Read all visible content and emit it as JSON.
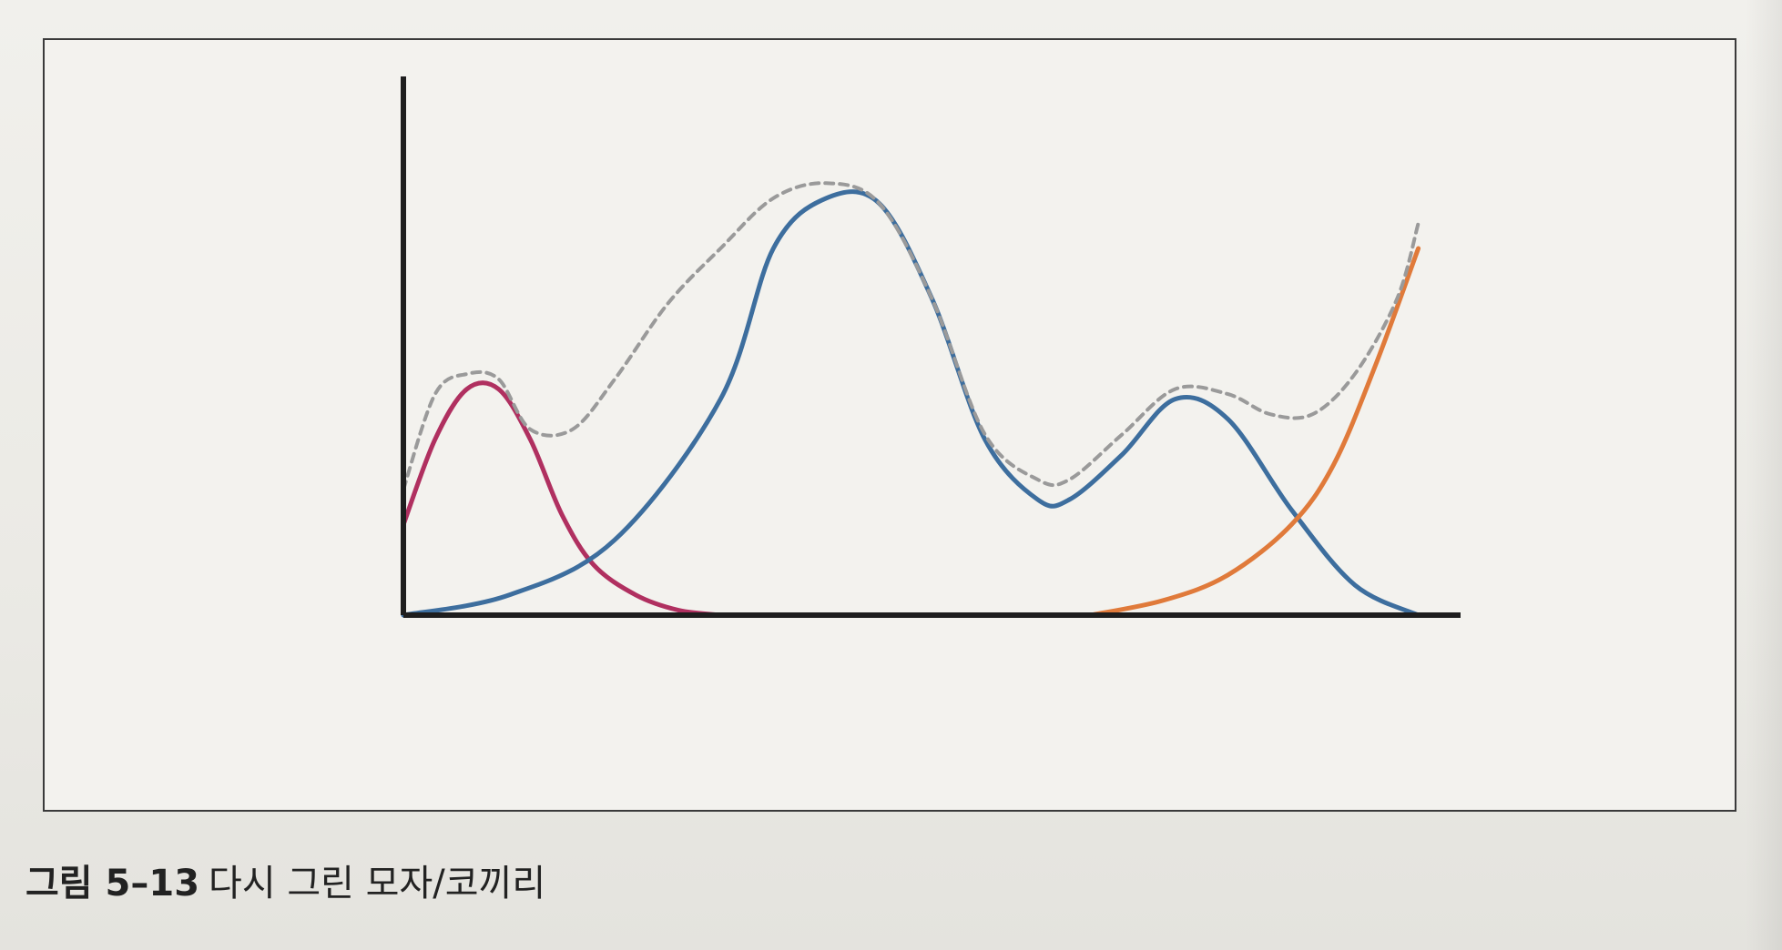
{
  "caption": {
    "label": "그림 5–13",
    "text": "다시 그린 모자/코끼리"
  },
  "chart_data": {
    "type": "line",
    "title": "",
    "xlabel": "",
    "ylabel": "",
    "xlim": [
      0,
      100
    ],
    "ylim": [
      0,
      100
    ],
    "grid": false,
    "legend": "none",
    "series": [
      {
        "style": "solid",
        "color": "#b03060",
        "x": [
          0,
          3,
          6,
          9,
          12,
          15,
          18,
          22,
          26,
          30
        ],
        "y": [
          18,
          35,
          45,
          45,
          35,
          20,
          10,
          4,
          1,
          0
        ]
      },
      {
        "style": "solid",
        "color": "#3d6e9e",
        "x": [
          0,
          10,
          20,
          30,
          35,
          40,
          45,
          50,
          55,
          60,
          63,
          68,
          73,
          78,
          84,
          90,
          96
        ],
        "y": [
          0,
          4,
          15,
          43,
          73,
          83,
          82,
          63,
          35,
          23,
          23,
          32,
          43,
          39,
          21,
          6,
          0
        ]
      },
      {
        "style": "solid",
        "color": "#e07a3a",
        "x": [
          65,
          72,
          78,
          84,
          88,
          92,
          96
        ],
        "y": [
          0,
          3,
          8,
          18,
          30,
          50,
          73
        ]
      },
      {
        "style": "dashed",
        "color": "#9a9a9a",
        "x": [
          0,
          3,
          6,
          9,
          12,
          16,
          20,
          25,
          30,
          35,
          40,
          45,
          50,
          55,
          60,
          63,
          68,
          73,
          78,
          82,
          86,
          90,
          94,
          96
        ],
        "y": [
          25,
          44,
          48,
          47,
          37,
          37,
          47,
          62,
          73,
          83,
          86,
          82,
          63,
          36,
          27,
          27,
          36,
          45,
          44,
          40,
          40,
          48,
          63,
          78
        ]
      }
    ]
  }
}
